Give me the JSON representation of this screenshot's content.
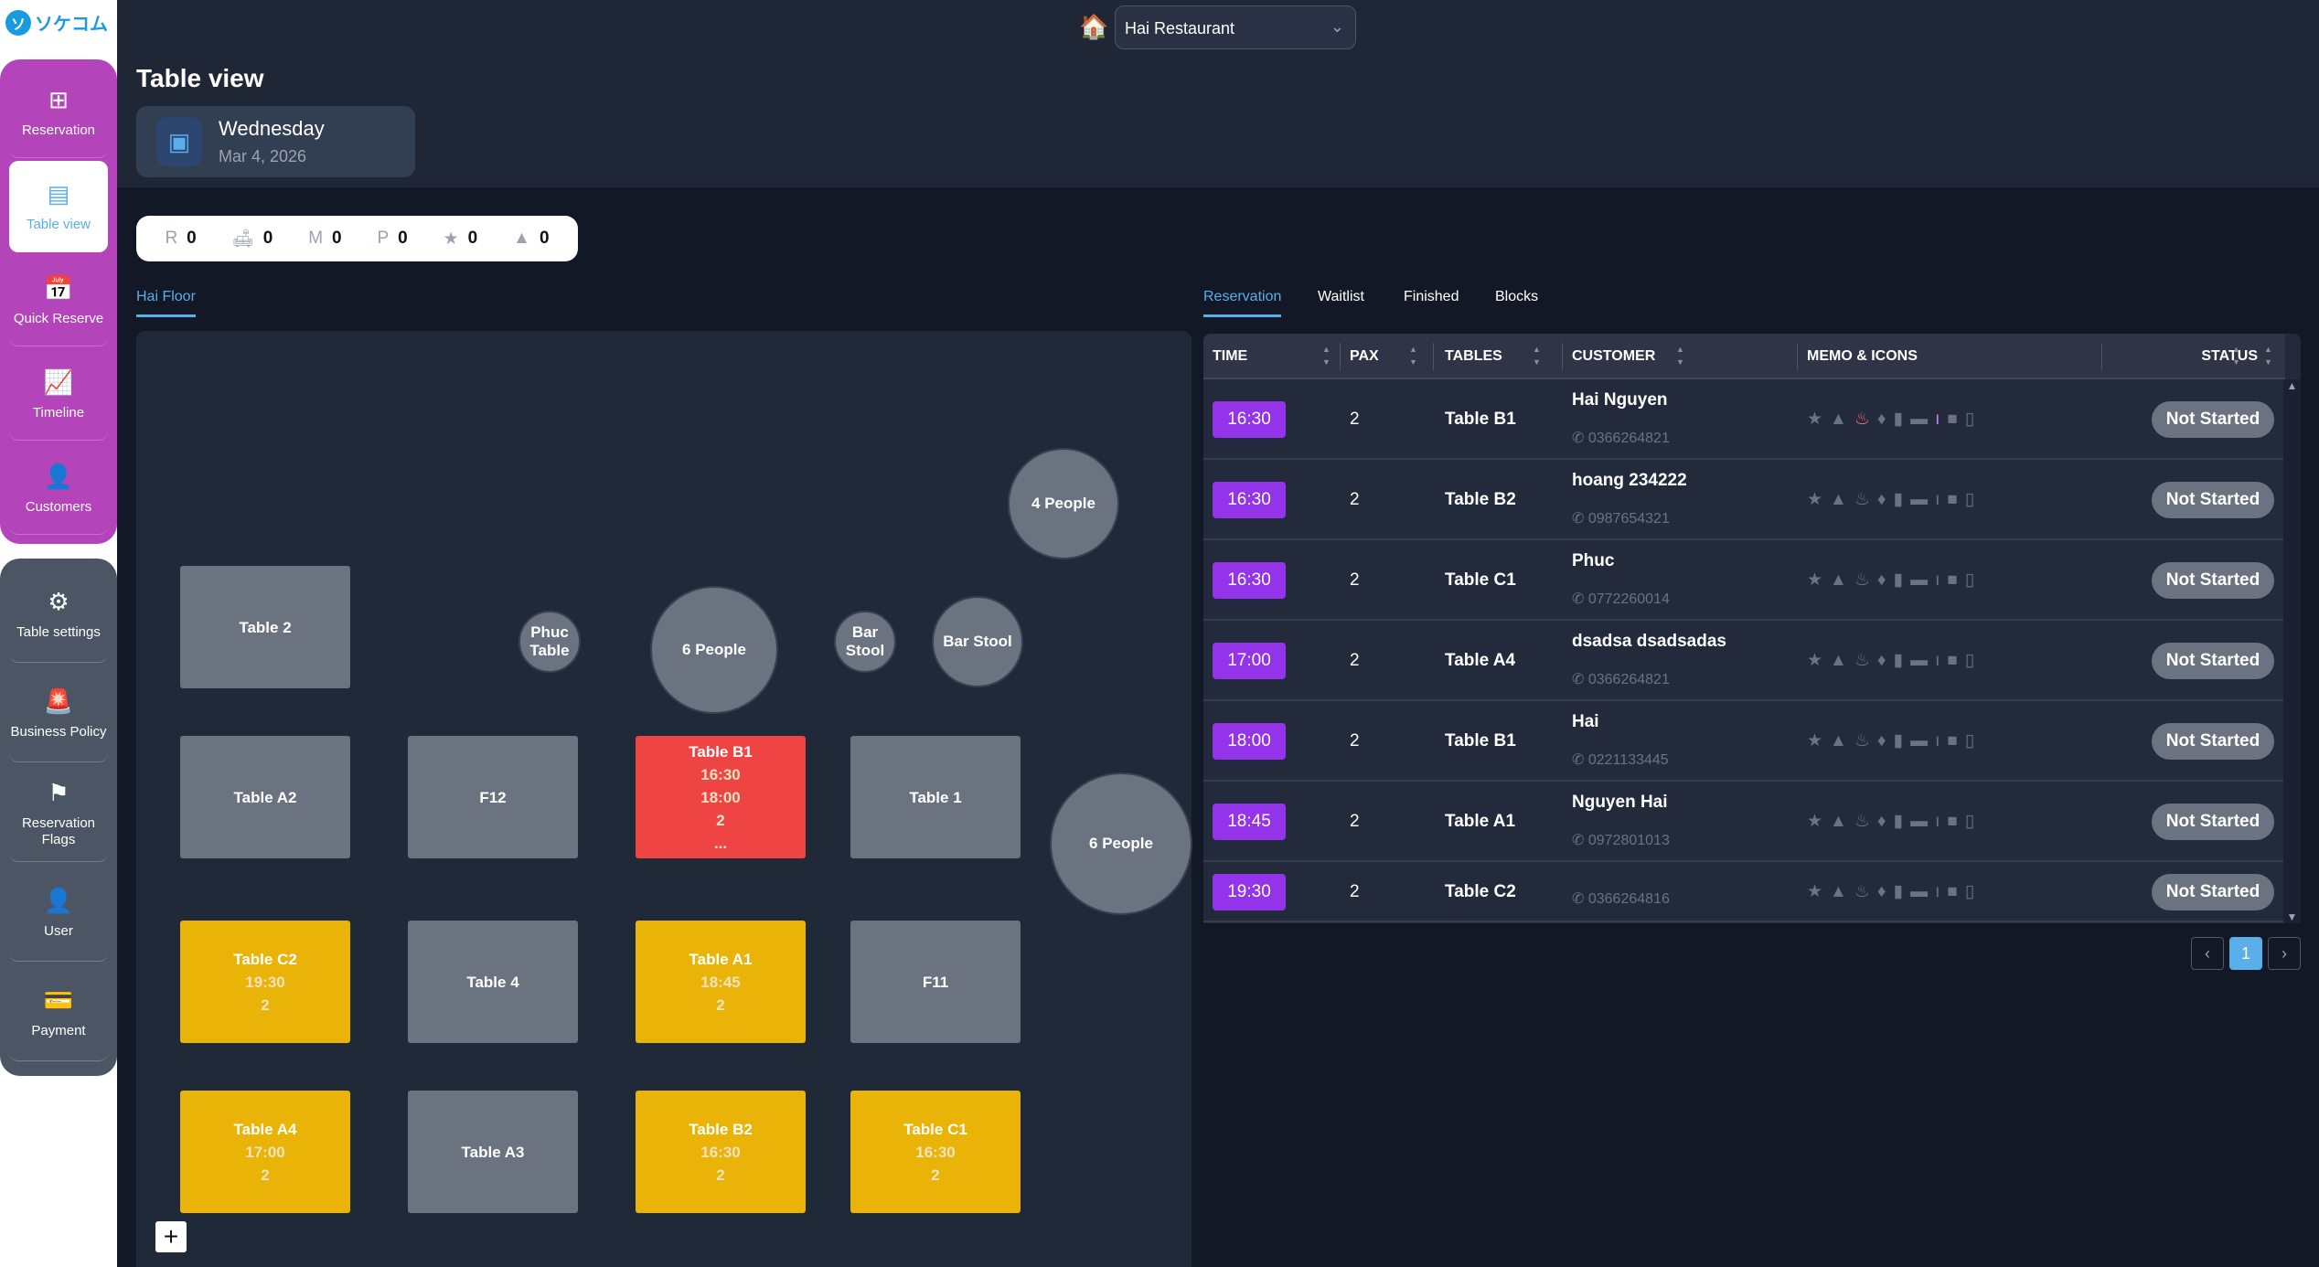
{
  "brand": {
    "logo_text": "ソケコム"
  },
  "sidebar": {
    "primary": [
      {
        "label": "Reservation",
        "icon": "grid-icon",
        "glyph": "⊞"
      },
      {
        "label": "Table view",
        "icon": "table-layout-icon",
        "glyph": "▤",
        "active": true
      },
      {
        "label": "Quick Reserve",
        "icon": "calendar-check-icon",
        "glyph": "📅"
      },
      {
        "label": "Timeline",
        "icon": "line-chart-icon",
        "glyph": "📈"
      },
      {
        "label": "Customers",
        "icon": "person-icon",
        "glyph": "👤"
      }
    ],
    "secondary": [
      {
        "label": "Table settings",
        "icon": "gear-icon",
        "glyph": "⚙"
      },
      {
        "label": "Business Policy",
        "icon": "siren-icon",
        "glyph": "🚨"
      },
      {
        "label": "Reservation Flags",
        "icon": "flag-icon",
        "glyph": "⚑"
      },
      {
        "label": "User",
        "icon": "user-icon",
        "glyph": "👤"
      },
      {
        "label": "Payment",
        "icon": "credit-card-icon",
        "glyph": "💳"
      }
    ]
  },
  "header": {
    "restaurant": "Hai Restaurant",
    "title": "Table view",
    "day": "Wednesday",
    "date": "Mar 4, 2026"
  },
  "stats": [
    {
      "key": "R",
      "value": "0",
      "icon": "r-label"
    },
    {
      "key": "🛋",
      "value": "0",
      "icon": "sofa-icon"
    },
    {
      "key": "M",
      "value": "0",
      "icon": "m-label"
    },
    {
      "key": "P",
      "value": "0",
      "icon": "p-label"
    },
    {
      "key": "★",
      "value": "0",
      "icon": "star-icon"
    },
    {
      "key": "▲",
      "value": "0",
      "icon": "warning-icon"
    }
  ],
  "floor": {
    "tab": "Hai Floor",
    "tables": [
      {
        "name": "Table 2",
        "state": "free"
      },
      {
        "name": "Table A2",
        "state": "free"
      },
      {
        "name": "F12",
        "state": "free"
      },
      {
        "name": "Table B1",
        "state": "red",
        "lines": [
          "16:30",
          "18:00",
          "2",
          "..."
        ]
      },
      {
        "name": "Table 1",
        "state": "free"
      },
      {
        "name": "Table C2",
        "state": "busy",
        "lines": [
          "19:30",
          "2"
        ]
      },
      {
        "name": "Table 4",
        "state": "free"
      },
      {
        "name": "Table A1",
        "state": "busy",
        "lines": [
          "18:45",
          "2"
        ]
      },
      {
        "name": "F11",
        "state": "free"
      },
      {
        "name": "Table A4",
        "state": "busy",
        "lines": [
          "17:00",
          "2"
        ]
      },
      {
        "name": "Table A3",
        "state": "free"
      },
      {
        "name": "Table B2",
        "state": "busy",
        "lines": [
          "16:30",
          "2"
        ]
      },
      {
        "name": "Table C1",
        "state": "busy",
        "lines": [
          "16:30",
          "2"
        ]
      }
    ],
    "round_tables": [
      "4 People",
      "Phuc Table",
      "6 People",
      "Bar Stool",
      "Bar Stool",
      "6 People"
    ],
    "zoom_in": "+"
  },
  "tabs": [
    "Reservation",
    "Waitlist",
    "Finished",
    "Blocks"
  ],
  "columns": [
    "TIME",
    "PAX",
    "TABLES",
    "CUSTOMER",
    "MEMO & ICONS",
    "STATUS"
  ],
  "reservations": [
    {
      "time": "16:30",
      "pax": "2",
      "table": "Table B1",
      "customer": "Hai Nguyen",
      "phone": "0366264821",
      "status": "Not Started",
      "hl": true
    },
    {
      "time": "16:30",
      "pax": "2",
      "table": "Table B2",
      "customer": "hoang 234222",
      "phone": "0987654321",
      "status": "Not Started"
    },
    {
      "time": "16:30",
      "pax": "2",
      "table": "Table C1",
      "customer": "Phuc",
      "phone": "0772260014",
      "status": "Not Started"
    },
    {
      "time": "17:00",
      "pax": "2",
      "table": "Table A4",
      "customer": "dsadsa dsadsadas",
      "phone": "0366264821",
      "status": "Not Started"
    },
    {
      "time": "18:00",
      "pax": "2",
      "table": "Table B1",
      "customer": "Hai",
      "phone": "0221133445",
      "status": "Not Started"
    },
    {
      "time": "18:45",
      "pax": "2",
      "table": "Table A1",
      "customer": "Nguyen Hai",
      "phone": "0972801013",
      "status": "Not Started"
    },
    {
      "time": "19:30",
      "pax": "2",
      "table": "Table C2",
      "customer": "",
      "phone": "0366264816",
      "status": "Not Started"
    }
  ],
  "memo_icons": [
    "star-icon",
    "warning-icon",
    "cake-icon",
    "diamond-icon",
    "wallet-icon",
    "card-icon",
    "bottle-icon",
    "briefcase-icon",
    "calendar-icon"
  ],
  "colors": {
    "accent": "#5aaeea",
    "time_badge": "#9333ea",
    "occupied": "#eab308",
    "overdue": "#ef4444",
    "sidebar": "#b444b9"
  },
  "pagination": {
    "current": "1",
    "prev": "‹",
    "next": "›"
  }
}
